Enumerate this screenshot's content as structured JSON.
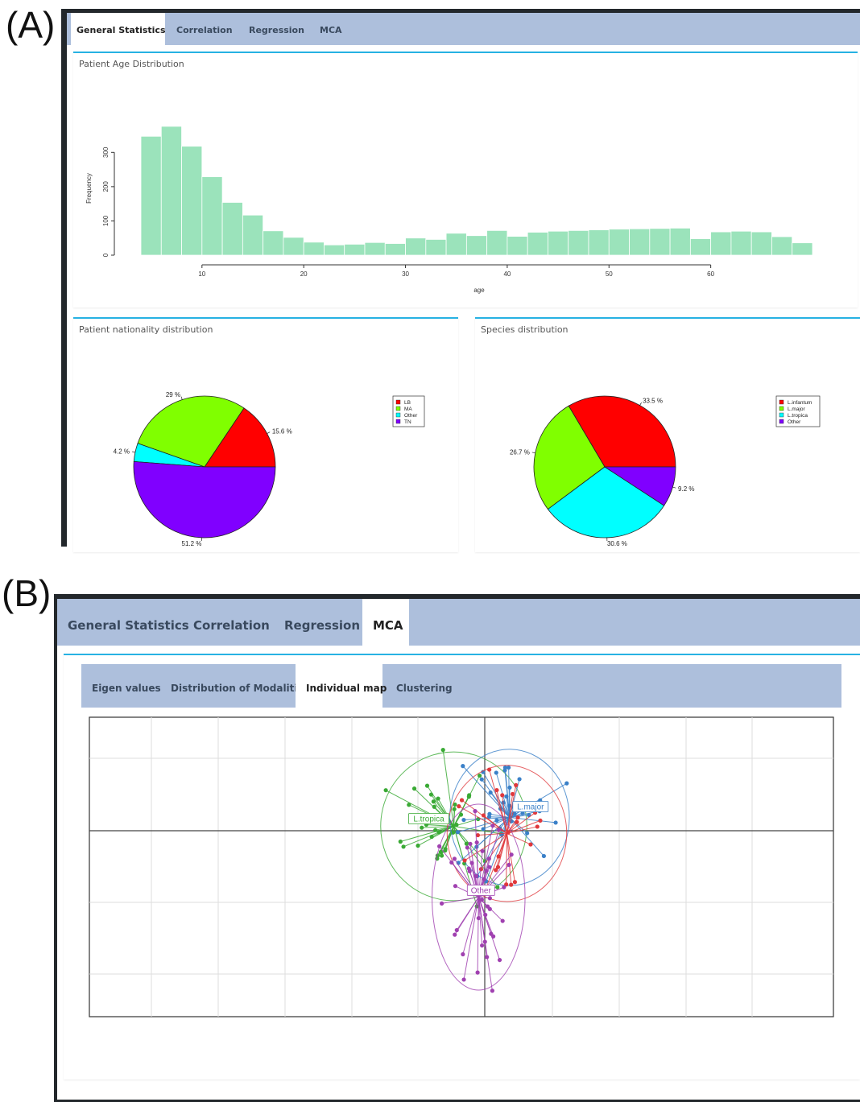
{
  "panel_labels": {
    "a": "(A)",
    "b": "(B)"
  },
  "tabs_main": [
    "General Statistics",
    "Correlation",
    "Regression",
    "MCA"
  ],
  "tabs_sub": [
    "Eigen values",
    "Distribution of Modalities",
    "Individual map",
    "Clustering"
  ],
  "panel_a": {
    "active_tab": "General Statistics"
  },
  "panel_b": {
    "active_tab": "MCA",
    "active_subtab": "Individual map"
  },
  "colors": {
    "tab_bar": "#adbfdc",
    "box_border": "#27b2e3",
    "hist_fill": "#9be3bb"
  },
  "chart_data": [
    {
      "type": "bar",
      "title": "Patient Age Distribution",
      "xlabel": "age",
      "ylabel": "Frequency",
      "bin_width": 2,
      "bin_start": 4,
      "counts": [
        347,
        376,
        318,
        229,
        154,
        117,
        71,
        52,
        38,
        30,
        32,
        37,
        34,
        50,
        46,
        64,
        57,
        72,
        55,
        67,
        70,
        72,
        74,
        76,
        77,
        78,
        79,
        48,
        68,
        70,
        68,
        54,
        36
      ],
      "x_ticks": [
        10,
        20,
        30,
        40,
        50,
        60
      ],
      "y_ticks": [
        0,
        100,
        200,
        300
      ],
      "ylim": [
        0,
        390
      ],
      "color": "#9be3bb",
      "grid": false
    },
    {
      "type": "pie",
      "title": "Patient nationality distribution",
      "slices": [
        {
          "label": "LB",
          "value": 15.6,
          "text": "15.6 %",
          "color": "#ff0000"
        },
        {
          "label": "MA",
          "value": 29.0,
          "text": "29 %",
          "color": "#80ff00"
        },
        {
          "label": "Other",
          "value": 4.2,
          "text": "4.2 %",
          "color": "#00ffff"
        },
        {
          "label": "TN",
          "value": 51.2,
          "text": "51.2 %",
          "color": "#8000ff"
        }
      ],
      "legend_position": "top-right"
    },
    {
      "type": "pie",
      "title": "Species distribution",
      "slices": [
        {
          "label": "L.infantum",
          "value": 33.5,
          "text": "33.5 %",
          "color": "#ff0000"
        },
        {
          "label": "L.major",
          "value": 26.7,
          "text": "26.7 %",
          "color": "#80ff00"
        },
        {
          "label": "L.tropica",
          "value": 30.6,
          "text": "30.6 %",
          "color": "#00ffff"
        },
        {
          "label": "Other",
          "value": 9.2,
          "text": "9.2 %",
          "color": "#8000ff"
        }
      ],
      "legend_position": "top-right"
    },
    {
      "type": "scatter",
      "title": "",
      "description_of_marks": "star plot of individuals joined to their group centroids, colored by species",
      "groups": [
        {
          "name": "L.tropica",
          "color": "#3aaa35",
          "centroid": [
            -0.35,
            0.05
          ]
        },
        {
          "name": "L.major",
          "color": "#3a80c8",
          "centroid": [
            0.28,
            0.15
          ]
        },
        {
          "name": "L.infantum",
          "color": "#e0383c",
          "centroid": [
            0.25,
            -0.03
          ]
        },
        {
          "name": "Other",
          "color": "#a040b0",
          "centroid": [
            -0.07,
            -0.75
          ]
        }
      ],
      "centroid_labels": [
        "L.major",
        "L.tropica",
        "Other"
      ],
      "axes_lines_through_origin": true,
      "grid": true
    }
  ]
}
